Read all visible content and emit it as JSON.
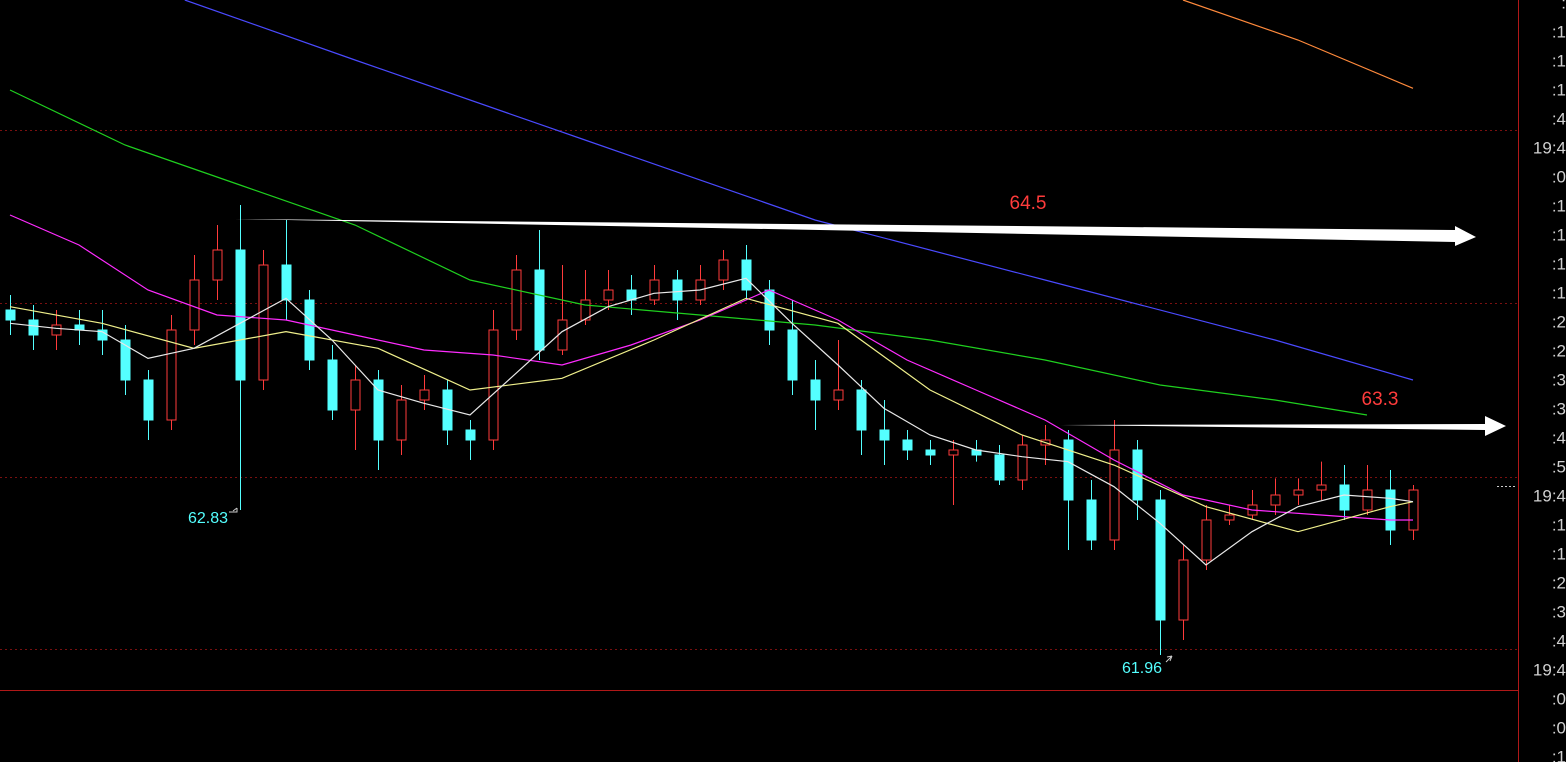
{
  "chart_data": {
    "type": "candlestick",
    "ylim": [
      61.75,
      65.89
    ],
    "up_color": "#ff3b3b",
    "down_color": "#54ffff",
    "candles": {
      "open": [
        64.03,
        63.97,
        63.88,
        63.94,
        63.91,
        63.85,
        63.61,
        63.37,
        63.91,
        64.21,
        64.39,
        63.61,
        64.3,
        64.09,
        63.73,
        63.43,
        63.61,
        63.25,
        63.49,
        63.55,
        63.31,
        63.25,
        63.91,
        64.27,
        63.79,
        63.97,
        64.09,
        64.15,
        64.09,
        64.21,
        64.09,
        64.21,
        64.33,
        64.15,
        63.91,
        63.61,
        63.49,
        63.55,
        63.31,
        63.25,
        63.19,
        63.16,
        63.19,
        63.16,
        63.01,
        63.22,
        63.25,
        62.89,
        62.65,
        63.19,
        62.89,
        62.17,
        62.53,
        62.77,
        62.8,
        62.86,
        62.92,
        62.95,
        62.98,
        62.83,
        62.95,
        62.71
      ],
      "high": [
        64.12,
        64.06,
        64.03,
        64.03,
        64.03,
        63.94,
        63.67,
        64.0,
        64.36,
        64.54,
        64.66,
        64.39,
        64.57,
        64.15,
        63.82,
        63.7,
        63.67,
        63.58,
        63.64,
        63.61,
        63.37,
        64.03,
        64.36,
        64.51,
        64.3,
        64.27,
        64.27,
        64.24,
        64.3,
        64.27,
        64.3,
        64.39,
        64.42,
        64.21,
        64.09,
        63.73,
        63.85,
        63.61,
        63.49,
        63.31,
        63.25,
        63.25,
        63.25,
        63.22,
        63.28,
        63.34,
        63.31,
        63.01,
        63.37,
        63.25,
        62.95,
        62.62,
        62.86,
        62.86,
        62.95,
        63.02,
        63.02,
        63.12,
        63.1,
        63.1,
        63.07,
        62.98
      ],
      "low": [
        63.88,
        63.79,
        63.79,
        63.82,
        63.76,
        63.52,
        63.25,
        63.31,
        63.82,
        64.09,
        62.83,
        63.55,
        63.97,
        63.67,
        63.37,
        63.19,
        63.07,
        63.16,
        63.43,
        63.22,
        63.13,
        63.19,
        63.85,
        63.73,
        63.76,
        63.94,
        64.03,
        64.0,
        64.06,
        63.97,
        64.06,
        64.15,
        64.09,
        63.82,
        63.52,
        63.31,
        63.43,
        63.16,
        63.1,
        63.13,
        63.1,
        62.86,
        63.12,
        62.98,
        62.95,
        63.1,
        62.59,
        62.59,
        62.59,
        62.77,
        61.96,
        62.05,
        62.47,
        62.74,
        62.77,
        62.8,
        62.86,
        62.89,
        62.77,
        62.8,
        62.62,
        62.65
      ],
      "close": [
        63.97,
        63.88,
        63.94,
        63.91,
        63.85,
        63.61,
        63.37,
        63.91,
        64.21,
        64.39,
        63.61,
        64.3,
        64.09,
        63.73,
        63.43,
        63.61,
        63.25,
        63.49,
        63.55,
        63.31,
        63.25,
        63.91,
        64.27,
        63.79,
        63.97,
        64.09,
        64.15,
        64.09,
        64.21,
        64.09,
        64.21,
        64.33,
        64.15,
        63.91,
        63.61,
        63.49,
        63.55,
        63.31,
        63.25,
        63.19,
        63.16,
        63.19,
        63.16,
        63.01,
        63.22,
        63.25,
        62.89,
        62.65,
        63.19,
        62.89,
        62.17,
        62.53,
        62.77,
        62.8,
        62.86,
        62.92,
        62.95,
        62.98,
        62.83,
        62.95,
        62.71,
        62.95
      ]
    },
    "ma_lines": [
      {
        "color": "#ff8a3c",
        "x": [
          51,
          56,
          61
        ],
        "values": [
          65.89,
          65.65,
          65.36
        ]
      },
      {
        "color": "#4a4aff",
        "x": [
          7.6,
          15,
          25,
          35,
          45,
          55,
          61
        ],
        "values": [
          65.89,
          65.53,
          65.05,
          64.57,
          64.21,
          63.85,
          63.61
        ]
      },
      {
        "color": "#1fd01f",
        "x": [
          0,
          5,
          10,
          15,
          20,
          25,
          30,
          35,
          40,
          45,
          50,
          55,
          59
        ],
        "values": [
          65.35,
          65.02,
          64.78,
          64.54,
          64.21,
          64.06,
          64.0,
          63.94,
          63.85,
          63.73,
          63.58,
          63.49,
          63.4
        ]
      },
      {
        "color": "#ff2cff",
        "x": [
          0,
          3,
          6,
          9,
          12,
          15,
          18,
          21,
          24,
          27,
          30,
          33,
          36,
          39,
          42,
          45,
          48,
          51,
          54,
          57,
          60,
          61
        ],
        "values": [
          64.6,
          64.42,
          64.15,
          64.0,
          63.97,
          63.88,
          63.79,
          63.76,
          63.7,
          63.82,
          63.97,
          64.15,
          63.97,
          63.73,
          63.55,
          63.37,
          63.13,
          62.92,
          62.83,
          62.8,
          62.77,
          62.77
        ]
      },
      {
        "color": "#f0f08c",
        "x": [
          0,
          4,
          8,
          12,
          16,
          20,
          24,
          28,
          32,
          36,
          40,
          44,
          48,
          52,
          56,
          60,
          61
        ],
        "values": [
          64.05,
          63.95,
          63.8,
          63.9,
          63.8,
          63.55,
          63.62,
          63.85,
          64.1,
          63.95,
          63.55,
          63.28,
          63.1,
          62.85,
          62.7,
          62.85,
          62.88
        ]
      },
      {
        "color": "#e8e8e8",
        "x": [
          0,
          2,
          4,
          6,
          8,
          10,
          12,
          14,
          16,
          18,
          20,
          22,
          24,
          26,
          28,
          30,
          32,
          34,
          36,
          38,
          40,
          42,
          44,
          46,
          48,
          50,
          52,
          54,
          56,
          58,
          60,
          61
        ],
        "values": [
          63.95,
          63.92,
          63.9,
          63.74,
          63.8,
          63.95,
          64.1,
          63.85,
          63.55,
          63.47,
          63.4,
          63.65,
          63.9,
          64.05,
          64.13,
          64.15,
          64.22,
          63.95,
          63.7,
          63.44,
          63.28,
          63.19,
          63.15,
          63.12,
          62.97,
          62.75,
          62.5,
          62.7,
          62.85,
          62.92,
          62.9,
          62.88
        ]
      }
    ],
    "annotations": [
      {
        "text": "64.5",
        "color": "#ff3b3b"
      },
      {
        "text": "63.3",
        "color": "#ff3b3b"
      },
      {
        "text": "62.83",
        "color": "#54ffff"
      },
      {
        "text": "61.96",
        "color": "#54ffff"
      }
    ],
    "time_labels": [
      ":",
      ":1",
      ":1",
      ":1",
      ":4",
      "19:4",
      ":0",
      ":1",
      ":1",
      ":1",
      ":1",
      ":2",
      ":2",
      ":3",
      ":3",
      ":4",
      ":5",
      "19:4",
      ":1",
      ":1",
      ":2",
      ":3",
      ":4",
      "19:4",
      ":0",
      ":0",
      ":1"
    ]
  }
}
